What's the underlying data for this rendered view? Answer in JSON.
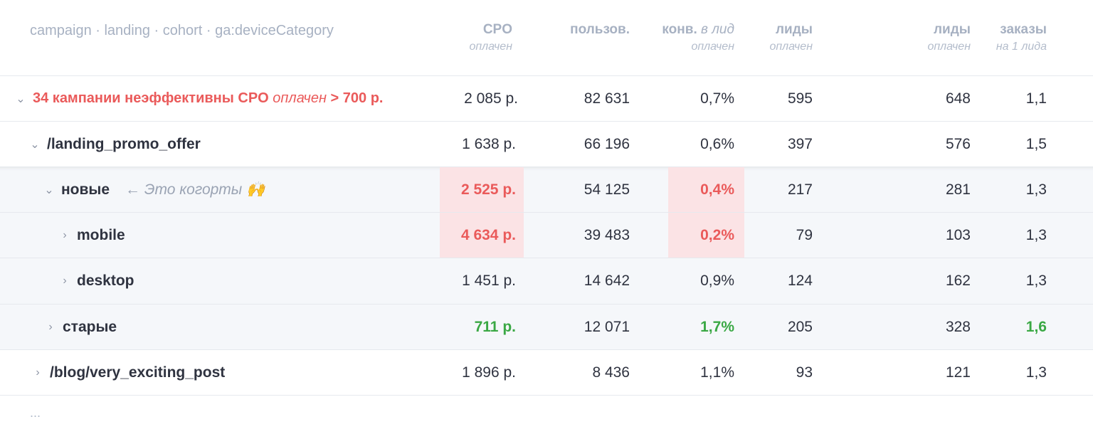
{
  "header": {
    "title": "campaign · landing · cohort · ga:deviceCategory",
    "columns": [
      {
        "label": "CPO",
        "sub": "оплачен"
      },
      {
        "label": "пользов.",
        "sub": ""
      },
      {
        "label": "конв.",
        "label_italic": "в лид",
        "sub": "оплачен"
      },
      {
        "label": "лиды",
        "sub": "оплачен"
      },
      {
        "label": "лиды",
        "sub": "оплачен"
      },
      {
        "label": "заказы",
        "sub": "на 1 лида"
      }
    ]
  },
  "rows": {
    "r0": {
      "name_prefix": "34 кампании неэффективны CPO",
      "name_italic": "оплачен",
      "name_suffix": "> 700 р.",
      "cpo": "2 085 р.",
      "users": "82 631",
      "conv": "0,7%",
      "leads_paid": "595",
      "leads": "648",
      "orders": "1,1"
    },
    "r1": {
      "name": "/landing_promo_offer",
      "cpo": "1 638 р.",
      "users": "66 196",
      "conv": "0,6%",
      "leads_paid": "397",
      "leads": "576",
      "orders": "1,5"
    },
    "r2": {
      "name": "новые",
      "note": "← Это когорты 🙌",
      "cpo": "2 525 р.",
      "users": "54 125",
      "conv": "0,4%",
      "leads_paid": "217",
      "leads": "281",
      "orders": "1,3"
    },
    "r3": {
      "name": "mobile",
      "cpo": "4 634 р.",
      "users": "39 483",
      "conv": "0,2%",
      "leads_paid": "79",
      "leads": "103",
      "orders": "1,3"
    },
    "r4": {
      "name": "desktop",
      "cpo": "1 451 р.",
      "users": "14 642",
      "conv": "0,9%",
      "leads_paid": "124",
      "leads": "162",
      "orders": "1,3"
    },
    "r5": {
      "name": "старые",
      "cpo": "711 р.",
      "users": "12 071",
      "conv": "1,7%",
      "leads_paid": "205",
      "leads": "328",
      "orders": "1,6"
    },
    "r6": {
      "name": "/blog/very_exciting_post",
      "cpo": "1 896 р.",
      "users": "8 436",
      "conv": "1,1%",
      "leads_paid": "93",
      "leads": "121",
      "orders": "1,3"
    }
  },
  "footer": {
    "more": "..."
  },
  "icons": {
    "expanded": "chevron-down-icon",
    "collapsed": "chevron-right-icon"
  },
  "colors": {
    "bad": "#ea5a5a",
    "good": "#3aa844",
    "bad_bg": "#fbe3e5"
  }
}
